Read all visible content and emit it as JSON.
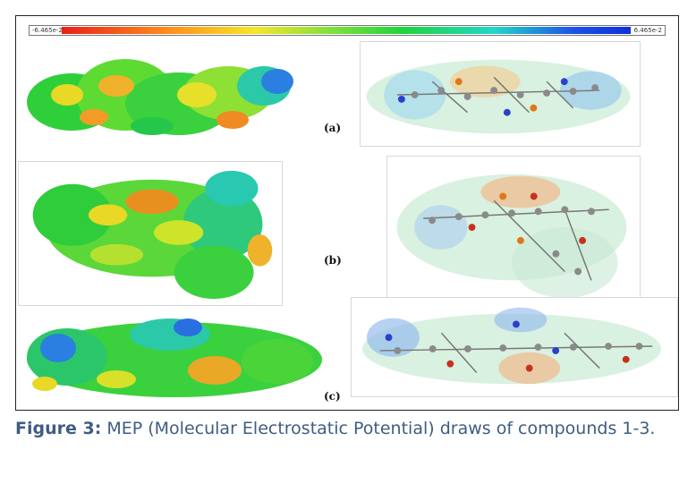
{
  "scale": {
    "min_label": "-6.465e-2",
    "max_label": "6.465e-2"
  },
  "labels": {
    "a": "(a)",
    "b": "(b)",
    "c": "(c)"
  },
  "caption": {
    "prefix": "Figure 3:",
    "text": "MEP (Molecular Electrostatic Potential) draws of compounds 1-3."
  },
  "colors": {
    "negative": "#e8201a",
    "neutral": "#1fd43d",
    "positive": "#1b52e6",
    "caption": "#3f5c82"
  }
}
